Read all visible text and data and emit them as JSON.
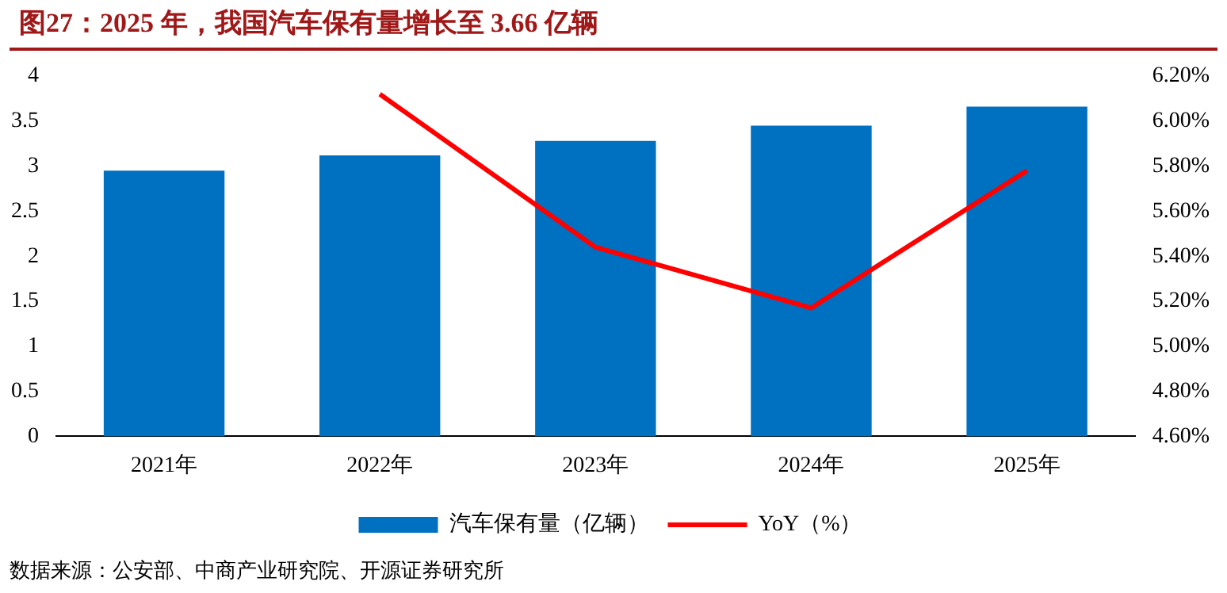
{
  "chart_data": {
    "type": "bar",
    "title": "图27：2025 年，我国汽车保有量增长至 3.66 亿辆",
    "categories": [
      "2021年",
      "2022年",
      "2023年",
      "2024年",
      "2025年"
    ],
    "series": [
      {
        "name": "汽车保有量（亿辆）",
        "color": "#0070c0",
        "values": [
          2.95,
          3.12,
          3.28,
          3.45,
          3.66
        ]
      },
      {
        "name": "YoY（%）",
        "type": "line",
        "axis": "y2",
        "color": "#ff0000",
        "values": [
          null,
          6.12,
          5.44,
          5.17,
          5.78
        ]
      }
    ],
    "ylim": [
      0,
      4
    ],
    "yticks": [
      0,
      0.5,
      1,
      1.5,
      2,
      2.5,
      3,
      3.5,
      4
    ],
    "y2lim": [
      4.6,
      6.2
    ],
    "y2ticks": [
      {
        "value": 4.6,
        "label": "4.60%"
      },
      {
        "value": 4.8,
        "label": "4.80%"
      },
      {
        "value": 5.0,
        "label": "5.00%"
      },
      {
        "value": 5.2,
        "label": "5.20%"
      },
      {
        "value": 5.4,
        "label": "5.40%"
      },
      {
        "value": 5.6,
        "label": "5.60%"
      },
      {
        "value": 5.8,
        "label": "5.80%"
      },
      {
        "value": 6.0,
        "label": "6.00%"
      },
      {
        "value": 6.2,
        "label": "6.20%"
      }
    ],
    "grid": false,
    "legend": "bottom",
    "marker": "none",
    "annotations": [
      "数据来源：公安部、中商产业研究院、开源证券研究所"
    ]
  }
}
